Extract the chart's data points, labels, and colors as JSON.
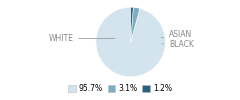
{
  "labels": [
    "WHITE",
    "ASIAN",
    "BLACK"
  ],
  "values": [
    95.7,
    3.1,
    1.2
  ],
  "colors": [
    "#d4e4ef",
    "#7aaec3",
    "#2c5f7b"
  ],
  "legend_colors": [
    "#d4e4ef",
    "#7aaec3",
    "#2c5f7b"
  ],
  "legend_labels": [
    "95.7%",
    "3.1%",
    "1.2%"
  ],
  "startangle": 90,
  "background_color": "#ffffff",
  "text_color": "#888888",
  "line_color": "#999999",
  "font_size": 5.5
}
